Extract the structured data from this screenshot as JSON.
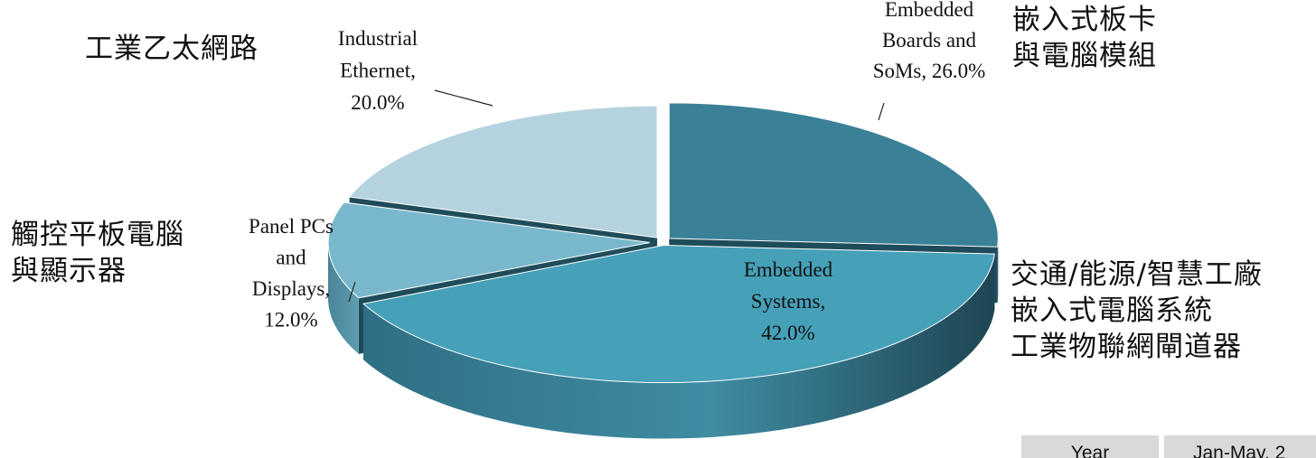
{
  "chart_data": {
    "type": "pie",
    "style": "3d-exploded",
    "categories": [
      "Embedded Boards and SoMs",
      "Embedded Systems",
      "Panel PCs and Displays",
      "Industrial Ethernet"
    ],
    "values": [
      26.0,
      42.0,
      12.0,
      20.0
    ],
    "value_labels": [
      "26.0%",
      "42.0%",
      "12.0%",
      "20.0%"
    ],
    "slice_labels": [
      [
        "Embedded",
        "Boards and",
        "SoMs, 26.0%"
      ],
      [
        "Embedded",
        "Systems,",
        "42.0%"
      ],
      [
        "Panel PCs",
        "and",
        "Displays,",
        "12.0%"
      ],
      [
        "Industrial",
        "Ethernet,",
        "20.0%"
      ]
    ],
    "colors": [
      "#3a8198",
      "#45a0b8",
      "#79b8cc",
      "#b5d3de"
    ]
  },
  "annotations": {
    "boards": [
      "嵌入式板卡",
      "與電腦模組"
    ],
    "systems": [
      "交通/能源/智慧工廠",
      "嵌入式電腦系統",
      "工業物聯網閘道器"
    ],
    "panel": [
      "觸控平板電腦",
      "與顯示器"
    ],
    "ethernet": [
      "工業乙太網路"
    ]
  },
  "table_fragment": {
    "header_year": "Year",
    "header_period": "Jan-May, 2"
  }
}
